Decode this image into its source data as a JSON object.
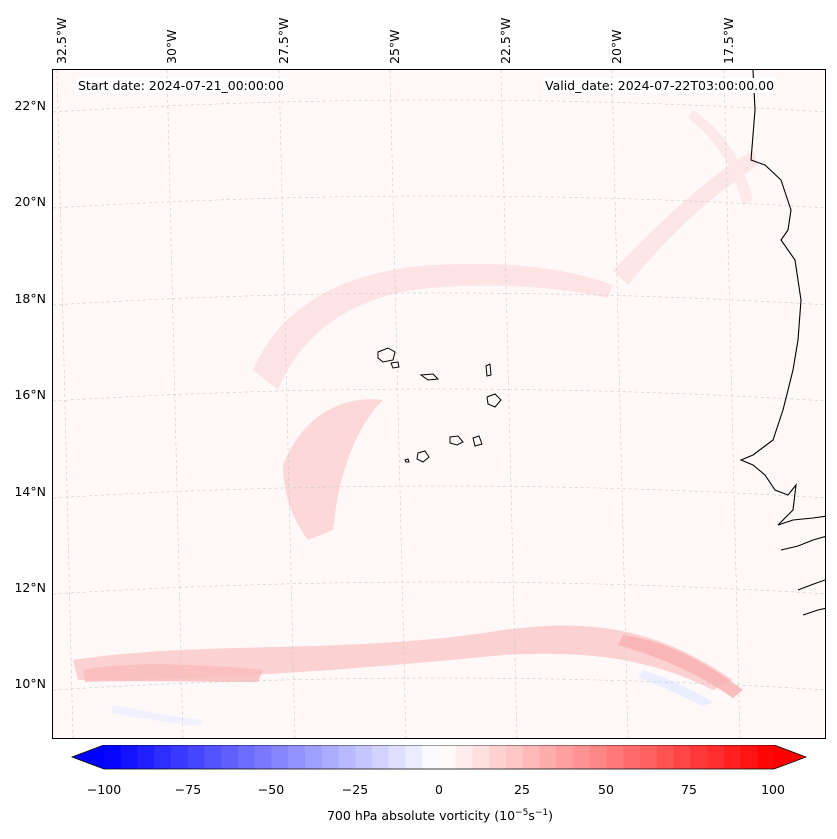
{
  "header": {
    "start_date": "Start date: 2024-07-21_00:00:00",
    "valid_date": "Valid_date: 2024-07-22T03:00:00.00"
  },
  "axes": {
    "lat_labels": [
      "22°N",
      "20°N",
      "18°N",
      "16°N",
      "14°N",
      "12°N",
      "10°N"
    ],
    "lon_labels": [
      "32.5°W",
      "30°W",
      "27.5°W",
      "25°W",
      "22.5°W",
      "20°W",
      "17.5°W"
    ]
  },
  "colorbar": {
    "ticks": [
      "−100",
      "−75",
      "−50",
      "−25",
      "0",
      "25",
      "50",
      "75",
      "100"
    ],
    "label_main": "700 hPa absolute vorticity (10",
    "label_exp1": "−5",
    "label_mid": "s",
    "label_exp2": "−1",
    "label_end": ")",
    "min": -100,
    "max": 100,
    "negative_color": "#0000ff",
    "positive_color": "#ff0000"
  },
  "map": {
    "background_color": "#fff8f8",
    "gridlines": true,
    "coastline_color": "#000000"
  }
}
